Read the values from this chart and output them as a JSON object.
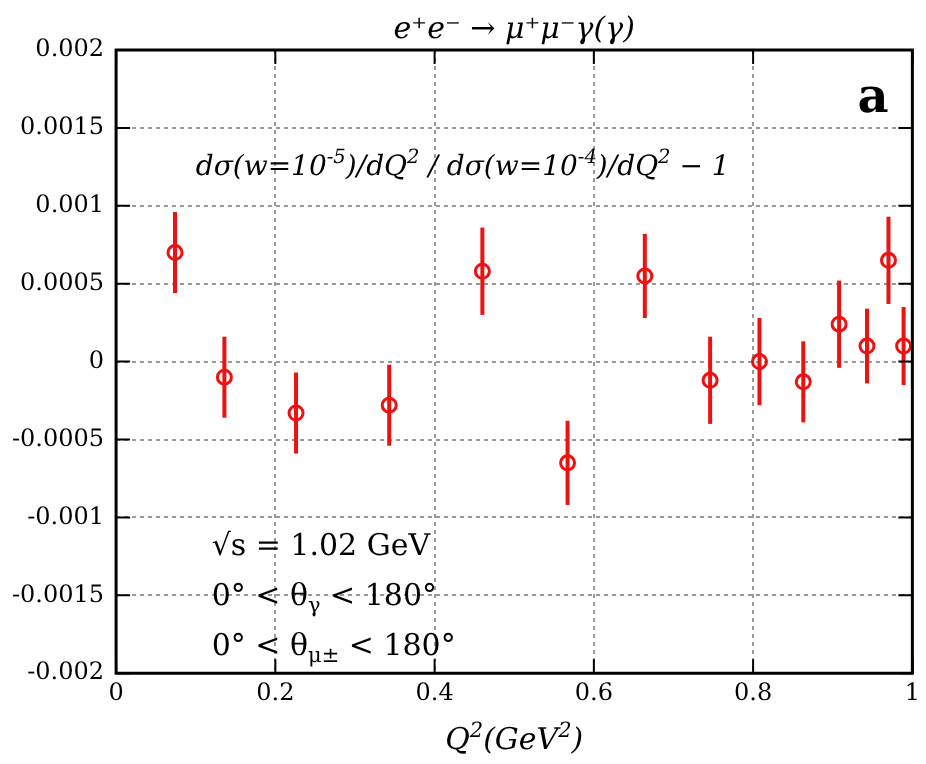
{
  "chart_data": {
    "type": "scatter",
    "title": "e⁺e⁻ → μ⁺μ⁻γ(γ)",
    "xlabel": "Q$^{2}$(GeV$^{2}$)",
    "x": [
      0.074,
      0.136,
      0.226,
      0.343,
      0.46,
      0.567,
      0.664,
      0.746,
      0.808,
      0.863,
      0.908,
      0.943,
      0.97,
      0.989
    ],
    "series": [
      {
        "color": "#ee1111",
        "values": [
          0.0007,
          -0.0001,
          -0.00033,
          -0.00028,
          0.00058,
          -0.00065,
          0.00055,
          -0.00012,
          0,
          -0.00013,
          0.00024,
          0.0001,
          0.00065,
          0.0001
        ],
        "errors": [
          0.00026,
          0.00026,
          0.00026,
          0.00026,
          0.00028,
          0.00027,
          0.00027,
          0.00028,
          0.00028,
          0.00026,
          0.00028,
          0.00024,
          0.00028,
          0.00025
        ]
      }
    ],
    "xlim": [
      0,
      1
    ],
    "xticks": [
      0,
      0.2,
      0.4,
      0.6,
      0.8,
      1
    ],
    "ylim": [
      -0.002,
      0.002
    ],
    "yticks": [
      -0.002,
      -0.0015,
      -0.001,
      -0.0005,
      0,
      0.0005,
      0.001,
      0.0015,
      0.002
    ],
    "grid": true,
    "marker": "circle",
    "annotations": [
      "dσ(w=10$^{-5}$)/dQ$^{2}$ / dσ(w=10$^{-4}$)/dQ$^{2}$ − 1",
      "a",
      "√s = 1.02 GeV",
      "0° < θ$_{γ}$ < 180°",
      "0° < θ$_{μ±}$ < 180°"
    ]
  }
}
